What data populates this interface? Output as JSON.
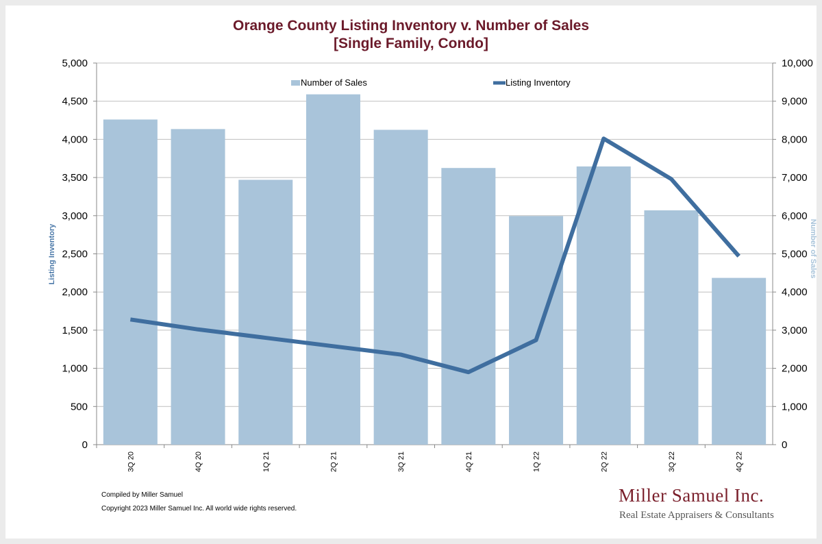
{
  "title_line1": "Orange County Listing Inventory v. Number of Sales",
  "title_line2": "[Single Family, Condo]",
  "footer": {
    "compiled": "Compiled by Miller Samuel",
    "copyright": "Copyright 2023 Miller Samuel Inc.  All world wide rights reserved."
  },
  "brand": {
    "name": "Miller Samuel Inc.",
    "tagline": "Real Estate Appraisers & Consultants"
  },
  "colors": {
    "title": "#6b1a2a",
    "bars": "#a9c4da",
    "line": "#3f6e9f",
    "grid": "#bfbfbf",
    "brand": "#7a1f2b"
  },
  "chart_data": {
    "type": "bar",
    "categories": [
      "3Q 20",
      "4Q 20",
      "1Q 21",
      "2Q 21",
      "3Q 21",
      "4Q 21",
      "1Q 22",
      "2Q 22",
      "3Q 22",
      "4Q 22"
    ],
    "series": [
      {
        "name": "Number of Sales",
        "type": "bar",
        "axis": "right",
        "values": [
          8520,
          8270,
          6940,
          9180,
          8250,
          7250,
          5990,
          7290,
          6140,
          4370
        ]
      },
      {
        "name": "Listing Inventory",
        "type": "line",
        "axis": "left",
        "values": [
          1640,
          1510,
          1400,
          1290,
          1180,
          950,
          1370,
          4010,
          3480,
          2470
        ]
      }
    ],
    "left_axis": {
      "label": "Listing Inventory",
      "ylim": [
        0,
        5000
      ],
      "ticks": [
        "0",
        "500",
        "1,000",
        "1,500",
        "2,000",
        "2,500",
        "3,000",
        "3,500",
        "4,000",
        "4,500",
        "5,000"
      ]
    },
    "right_axis": {
      "label": "Number of Sales",
      "ylim": [
        0,
        10000
      ],
      "ticks": [
        "0",
        "1,000",
        "2,000",
        "3,000",
        "4,000",
        "5,000",
        "6,000",
        "7,000",
        "8,000",
        "9,000",
        "10,000"
      ]
    },
    "legend": [
      "Number of Sales",
      "Listing Inventory"
    ],
    "legend_placement": "top",
    "grid": "horizontal"
  }
}
